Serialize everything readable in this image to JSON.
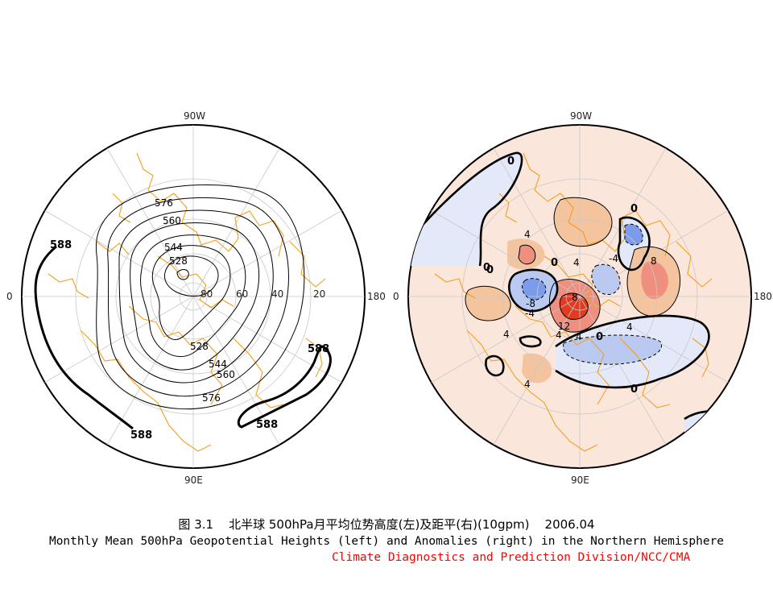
{
  "caption": {
    "figure_number": "图 3.1",
    "title_cn": "北半球 500hPa月平均位势高度(左)及距平(右)(10gpm)",
    "date": "2006.04",
    "title_en": "Monthly Mean 500hPa Geopotential Heights (left) and Anomalies (right) in the Northern Hemisphere",
    "credit": "Climate Diagnostics and Prediction Division/NCC/CMA"
  },
  "colors": {
    "coast": "#f0a020",
    "credit": "#ff0000",
    "contour": "#000000",
    "positive_light": "#fbe6dc",
    "positive_mid": "#f4c49f",
    "positive_strong": "#ee8f80",
    "positive_max": "#e23b20",
    "negative_light": "#e3e9f8",
    "negative_mid": "#b9c9f1",
    "negative_strong": "#7c9be8"
  },
  "chart_data": [
    {
      "type": "contour",
      "panel": "left",
      "title": "",
      "projection": "polar stereographic, North Pole",
      "lon_labels": [
        "90W",
        "0",
        "180",
        "90E"
      ],
      "lat_labels": [
        "80",
        "60",
        "40",
        "20"
      ],
      "units": "10gpm",
      "contour_levels": [
        528,
        536,
        544,
        552,
        560,
        568,
        576,
        584,
        588
      ],
      "labeled_levels": [
        {
          "text": "576",
          "value": 576
        },
        {
          "text": "560",
          "value": 560
        },
        {
          "text": "544",
          "value": 544
        },
        {
          "text": "528",
          "value": 528
        },
        {
          "text": "528",
          "value": 528
        },
        {
          "text": "544",
          "value": 544
        },
        {
          "text": "560",
          "value": 560
        },
        {
          "text": "576",
          "value": 576
        },
        {
          "text": "588",
          "value": 588
        },
        {
          "text": "588",
          "value": 588
        },
        {
          "text": "588",
          "value": 588
        },
        {
          "text": "588",
          "value": 588
        }
      ],
      "bold_level": 588
    },
    {
      "type": "contour",
      "panel": "right",
      "title": "",
      "projection": "polar stereographic, North Pole",
      "lon_labels": [
        "90W",
        "0",
        "180",
        "90E"
      ],
      "units": "10gpm",
      "contour_interval": 4,
      "anomaly_labels": [
        {
          "text": "0",
          "value": 0
        },
        {
          "text": "0",
          "value": 0
        },
        {
          "text": "0",
          "value": 0
        },
        {
          "text": "0",
          "value": 0
        },
        {
          "text": "0",
          "value": 0
        },
        {
          "text": "0",
          "value": 0
        },
        {
          "text": "0",
          "value": 0
        },
        {
          "text": "4",
          "value": 4
        },
        {
          "text": "4",
          "value": 4
        },
        {
          "text": "-4",
          "value": -4
        },
        {
          "text": "8",
          "value": 8
        },
        {
          "text": "-8",
          "value": -8
        },
        {
          "text": "-4",
          "value": -4
        },
        {
          "text": "8",
          "value": 8
        },
        {
          "text": "12",
          "value": 12
        },
        {
          "text": "4",
          "value": 4
        },
        {
          "text": "4",
          "value": 4
        },
        {
          "text": "4",
          "value": 4
        },
        {
          "text": "4",
          "value": 4
        },
        {
          "text": "4",
          "value": 4
        }
      ],
      "shading": "positive anomalies red/orange, negative anomalies blue; negative contours dashed"
    }
  ]
}
